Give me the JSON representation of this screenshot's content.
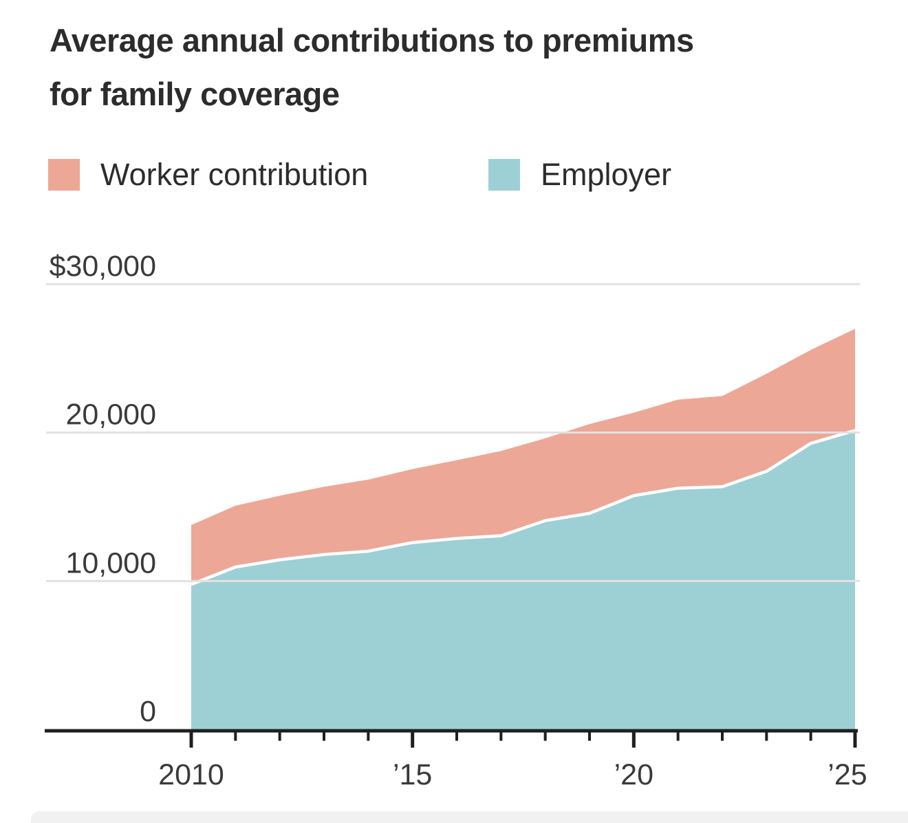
{
  "title": {
    "lines": [
      "Average annual contributions to premiums",
      "for family coverage"
    ]
  },
  "legend": {
    "items": [
      {
        "key": "worker",
        "label": "Worker contribution",
        "color": "#EDA796"
      },
      {
        "key": "employer",
        "label": "Employer",
        "color": "#9DD0D4"
      }
    ]
  },
  "chart_data": {
    "type": "area",
    "stacked": true,
    "title": "Average annual contributions to premiums for family coverage",
    "xlabel": "",
    "ylabel": "",
    "x": [
      2010,
      2011,
      2012,
      2013,
      2014,
      2015,
      2016,
      2017,
      2018,
      2019,
      2020,
      2021,
      2022,
      2023,
      2024,
      2025
    ],
    "series": [
      {
        "name": "Employer",
        "color": "#9DD0D4",
        "values": [
          9773,
          10944,
          11429,
          11786,
          12011,
          12590,
          12865,
          13050,
          14069,
          14561,
          15754,
          16253,
          16357,
          17393,
          19276,
          20143
        ]
      },
      {
        "name": "Worker contribution",
        "color": "#EDA796",
        "values": [
          3997,
          4129,
          4316,
          4565,
          4823,
          4955,
          5277,
          5714,
          5547,
          6015,
          5588,
          5969,
          6106,
          6575,
          6296,
          6850
        ]
      }
    ],
    "totals": [
      13770,
      15073,
      15745,
      16351,
      16834,
      17545,
      18142,
      18764,
      19616,
      20576,
      21342,
      22221,
      22463,
      23968,
      25572,
      26993
    ],
    "xlim": [
      2010,
      2025
    ],
    "ylim": [
      0,
      30000
    ],
    "grid": "horizontal",
    "legend_position": "top",
    "y_ticks": [
      {
        "value": 30000,
        "label": "$30,000"
      },
      {
        "value": 20000,
        "label": "20,000"
      },
      {
        "value": 10000,
        "label": "10,000"
      },
      {
        "value": 0,
        "label": "0"
      }
    ],
    "x_ticks_major": [
      {
        "value": 2010,
        "label": "2010"
      },
      {
        "value": 2015,
        "label": "’15"
      },
      {
        "value": 2020,
        "label": "’20"
      },
      {
        "value": 2025,
        "label": "’25"
      }
    ]
  },
  "colors": {
    "background": "#FFFFFF",
    "axis": "#1F1F1F",
    "gridline": "#E2E2E2",
    "title_text": "#2C2C2C",
    "tick_text": "#3A3A3A",
    "separator": "#FFFFFF",
    "bottom_strip": "#F1F1F2"
  }
}
